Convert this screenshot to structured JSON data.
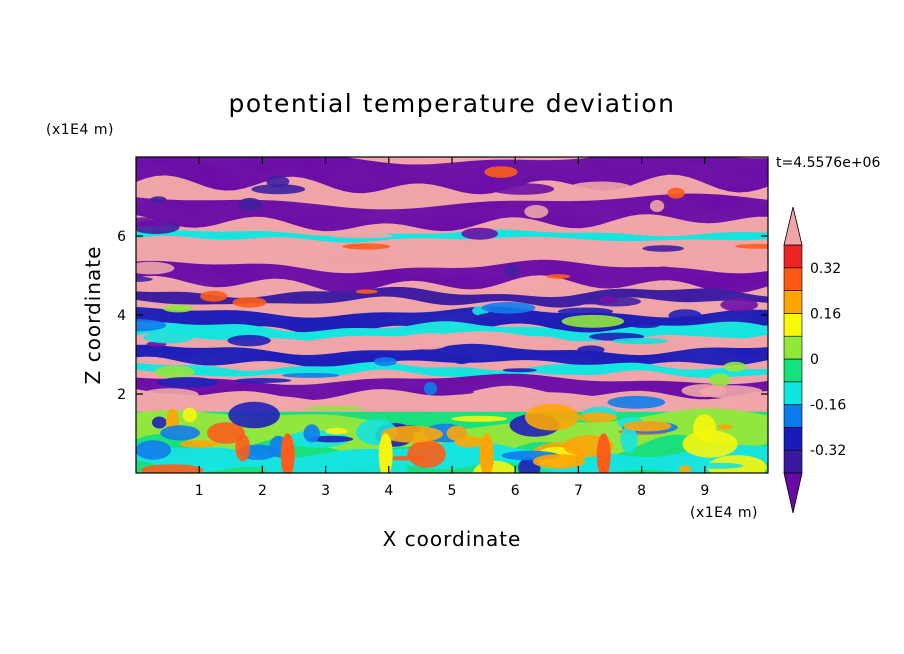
{
  "chart_data": {
    "type": "heatmap",
    "title": "potential temperature deviation",
    "xlabel": "X coordinate",
    "ylabel": "Z coordinate",
    "x_unit": "(x1E4 m)",
    "y_unit": "(x1E4 m)",
    "time_label": "t=4.5576e+06",
    "xlim": [
      0,
      10
    ],
    "ylim": [
      0,
      8
    ],
    "x_ticks": [
      1,
      2,
      3,
      4,
      5,
      6,
      7,
      8,
      9
    ],
    "y_ticks": [
      2,
      4,
      6
    ],
    "colorbar": {
      "levels": [
        -0.4,
        -0.32,
        -0.24,
        -0.16,
        -0.08,
        0,
        0.08,
        0.16,
        0.24,
        0.32,
        0.4
      ],
      "labeled_levels": [
        -0.32,
        -0.16,
        0,
        0.16,
        0.32
      ],
      "labels": [
        "-0.32",
        "-0.16",
        "0",
        "0.16",
        "0.32"
      ],
      "colors": [
        "#6a0aa6",
        "#3a18a0",
        "#1a1ab8",
        "#0a7af0",
        "#10e6e0",
        "#14e27a",
        "#90e83a",
        "#f8f80a",
        "#ffa500",
        "#ff5a14",
        "#ee2424",
        "#f2a4a8"
      ],
      "extend": "both"
    },
    "layers": [
      {
        "level": "low",
        "z": [
          0,
          1.6
        ],
        "dominant": [
          "#14e27a",
          "#90e83a",
          "#10e6e0",
          "#0a7af0"
        ]
      },
      {
        "level": "mid",
        "z": [
          1.6,
          4.2
        ],
        "dominant": [
          "#1a1ab8",
          "#10e6e0",
          "#f2a4a8",
          "#6a0aa6"
        ]
      },
      {
        "level": "upper",
        "z": [
          4.2,
          8
        ],
        "dominant": [
          "#6a0aa6",
          "#f2a4a8"
        ]
      }
    ]
  }
}
